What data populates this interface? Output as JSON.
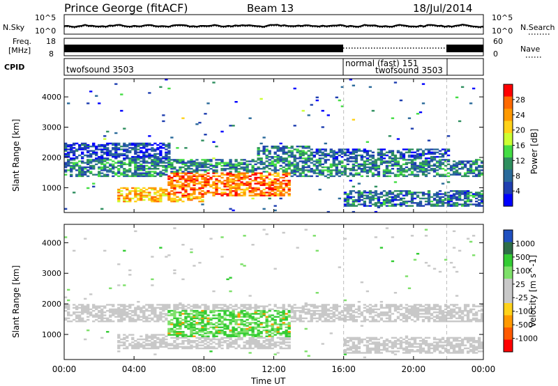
{
  "header": {
    "station": "Prince George (fitACF)",
    "beam": "Beam 13",
    "date": "18/Jul/2014"
  },
  "noise_panel": {
    "left_label": "N.Sky",
    "left_ticks": [
      "10^5",
      "10^0"
    ],
    "right_ticks": [
      "10^5",
      "10^0"
    ],
    "right_label": "N.Search"
  },
  "freq_panel": {
    "left_label_line1": "Freq.",
    "left_label_line2": "[MHz]",
    "left_ticks": [
      "18",
      "8"
    ],
    "right_ticks": [
      "60",
      "0"
    ],
    "right_label": "Nave"
  },
  "cpid_panel": {
    "label": "CPID",
    "segments": [
      {
        "text": "twofsound 3503",
        "start_hour": 0,
        "end_hour": 16
      },
      {
        "text": "normal (fast) 151",
        "start_hour": 16,
        "end_hour": 21.9
      },
      {
        "text": "twofsound 3503",
        "start_hour": 16,
        "end_hour": 21.9
      }
    ]
  },
  "chart_data": [
    {
      "type": "heatmap",
      "title": "Power",
      "ylabel": "Slant Range [km]",
      "xlabel": "",
      "xlim": [
        0,
        24
      ],
      "ylim": [
        180,
        4600
      ],
      "yticks": [
        1000,
        2000,
        3000,
        4000
      ],
      "colorbar_label": "Power [dB]",
      "colorbar_ticks": [
        "28",
        "24",
        "20",
        "16",
        "12",
        "8",
        "4"
      ],
      "colorbar_colors": [
        "#ff0000",
        "#ff6a00",
        "#ff9900",
        "#ffd21a",
        "#ccff33",
        "#44dd44",
        "#2f8f5f",
        "#2a6a9a",
        "#1f3fb0",
        "#0000ff"
      ],
      "mode_changes_hour": [
        16,
        21.9
      ],
      "regions": [
        {
          "t0": 0.0,
          "t1": 24.0,
          "r0": 1350,
          "r1": 1950,
          "level": 0.3
        },
        {
          "t0": 0.0,
          "t1": 6.0,
          "r0": 1950,
          "r1": 2500,
          "level": 0.15
        },
        {
          "t0": 3.0,
          "t1": 8.0,
          "r0": 500,
          "r1": 1000,
          "level": 0.7
        },
        {
          "t0": 6.0,
          "t1": 13.0,
          "r0": 700,
          "r1": 1500,
          "level": 0.82
        },
        {
          "t0": 11.0,
          "t1": 14.0,
          "r0": 1600,
          "r1": 2400,
          "level": 0.3
        },
        {
          "t0": 13.0,
          "t1": 22.0,
          "r0": 1800,
          "r1": 2300,
          "level": 0.2
        },
        {
          "t0": 16.0,
          "t1": 24.0,
          "r0": 400,
          "r1": 900,
          "level": 0.25
        }
      ]
    },
    {
      "type": "heatmap",
      "title": "Velocity",
      "ylabel": "Slant Range [km]",
      "xlabel": "Time UT",
      "xlim": [
        0,
        24
      ],
      "ylim": [
        180,
        4600
      ],
      "yticks": [
        1000,
        2000,
        3000,
        4000
      ],
      "xticks": [
        "00:00",
        "04:00",
        "08:00",
        "12:00",
        "16:00",
        "20:00",
        "00:00"
      ],
      "colorbar_label": "Velocity [m s^-1]",
      "colorbar_ticks": [
        "1000",
        "500",
        "100",
        "25",
        "-25",
        "-100",
        "-500",
        "-1000"
      ],
      "colorbar_colors": [
        "#2050c0",
        "#2e6e48",
        "#33cc33",
        "#7ee06a",
        "#c8c8c8",
        "#c8c8c8",
        "#ffd21a",
        "#ff9900",
        "#ff5a00",
        "#ff0000"
      ],
      "mode_changes_hour": [
        16,
        21.9
      ],
      "regions": [
        {
          "t0": 0.0,
          "t1": 24.0,
          "r0": 1400,
          "r1": 2000,
          "level": 0.05
        },
        {
          "t0": 3.0,
          "t1": 13.0,
          "r0": 500,
          "r1": 1000,
          "level": 0.05
        },
        {
          "t0": 6.0,
          "t1": 13.0,
          "r0": 900,
          "r1": 1800,
          "level": 0.55
        },
        {
          "t0": 16.0,
          "t1": 24.0,
          "r0": 400,
          "r1": 900,
          "level": 0.05
        }
      ]
    }
  ]
}
